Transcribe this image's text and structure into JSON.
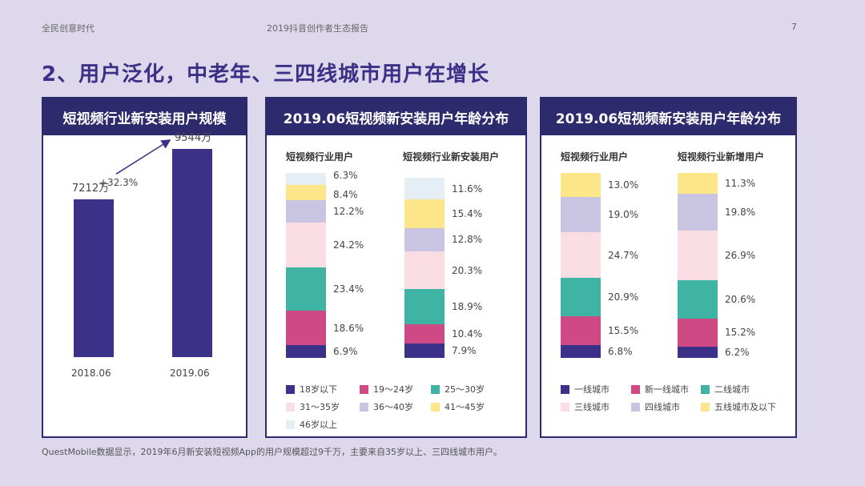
{
  "header": {
    "left": "全民创意时代",
    "center": "2019抖音创作者生态报告",
    "page": "7"
  },
  "title": "2、用户泛化，中老年、三四线城市用户在增长",
  "footnote": "QuestMobile数据显示，2019年6月新安装短视频App的用户规模超过9千万，主要来自35岁以上、三四线城市用户。",
  "colors": {
    "navy": "#2e2a6e",
    "purple_bar": "#3b3188"
  },
  "chart_data": [
    {
      "type": "bar",
      "title": "短视频行业新安装用户规模",
      "categories": [
        "2018.06",
        "2019.06"
      ],
      "values": [
        7212,
        9544
      ],
      "value_labels": [
        "7212万",
        "9544万"
      ],
      "growth_label": "+32.3%",
      "ylim": [
        0,
        11000
      ]
    },
    {
      "type": "bar",
      "stacked": true,
      "title": "2019.06短视频新安装用户年龄分布",
      "categories": [
        "短视频行业用户",
        "短视频行业新安装用户"
      ],
      "series": [
        {
          "name": "18岁以下",
          "color": "#3b3188",
          "values": [
            6.9,
            7.9
          ]
        },
        {
          "name": "19～24岁",
          "color": "#cf4a85",
          "values": [
            18.6,
            10.4
          ]
        },
        {
          "name": "25～30岁",
          "color": "#3fb4a5",
          "values": [
            23.4,
            18.9
          ]
        },
        {
          "name": "31～35岁",
          "color": "#fbdde4",
          "values": [
            24.2,
            20.3
          ]
        },
        {
          "name": "36～40岁",
          "color": "#c9c4e2",
          "values": [
            12.2,
            12.8
          ]
        },
        {
          "name": "41～45岁",
          "color": "#fde68a",
          "values": [
            8.4,
            15.4
          ]
        },
        {
          "name": "46岁以上",
          "color": "#e5eef5",
          "values": [
            6.3,
            11.6
          ]
        }
      ],
      "value_labels": [
        [
          "6.9%",
          "18.6%",
          "23.4%",
          "24.2%",
          "12.2%",
          "8.4%",
          "6.3%"
        ],
        [
          "7.9%",
          "10.4%",
          "18.9%",
          "20.3%",
          "12.8%",
          "15.4%",
          "11.6%"
        ]
      ]
    },
    {
      "type": "bar",
      "stacked": true,
      "title": "2019.06短视频新安装用户年龄分布",
      "categories": [
        "短视频行业用户",
        "短视频行业新增用户"
      ],
      "series": [
        {
          "name": "一线城市",
          "color": "#3b3188",
          "values": [
            6.8,
            6.2
          ]
        },
        {
          "name": "新一线城市",
          "color": "#cf4a85",
          "values": [
            15.5,
            15.2
          ]
        },
        {
          "name": "二线城市",
          "color": "#3fb4a5",
          "values": [
            20.9,
            20.6
          ]
        },
        {
          "name": "三线城市",
          "color": "#fbdde4",
          "values": [
            24.7,
            26.9
          ]
        },
        {
          "name": "四线城市",
          "color": "#c9c4e2",
          "values": [
            19.0,
            19.8
          ]
        },
        {
          "name": "五线城市及以下",
          "color": "#fde68a",
          "values": [
            13.0,
            11.3
          ]
        }
      ],
      "value_labels": [
        [
          "6.8%",
          "15.5%",
          "20.9%",
          "24.7%",
          "19.0%",
          "13.0%"
        ],
        [
          "6.2%",
          "15.2%",
          "20.6%",
          "26.9%",
          "19.8%",
          "11.3%"
        ]
      ]
    }
  ]
}
